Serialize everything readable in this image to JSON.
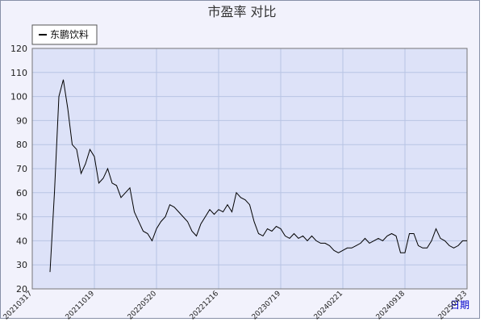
{
  "chart_data": {
    "type": "line",
    "title": "市盈率  对比",
    "x_label": "日期",
    "categories": [
      "20210317",
      null,
      null,
      null,
      null,
      null,
      null,
      null,
      null,
      null,
      null,
      null,
      null,
      null,
      "20211019",
      null,
      null,
      null,
      null,
      null,
      null,
      null,
      null,
      null,
      null,
      null,
      null,
      null,
      "20220520",
      null,
      null,
      null,
      null,
      null,
      null,
      null,
      null,
      null,
      null,
      null,
      null,
      null,
      "20221216",
      null,
      null,
      null,
      null,
      null,
      null,
      null,
      null,
      null,
      null,
      null,
      null,
      null,
      "20230719",
      null,
      null,
      null,
      null,
      null,
      null,
      null,
      null,
      null,
      null,
      null,
      null,
      null,
      "20240221",
      null,
      null,
      null,
      null,
      null,
      null,
      null,
      null,
      null,
      null,
      null,
      null,
      null,
      "20240918",
      null,
      null,
      null,
      null,
      null,
      null,
      null,
      null,
      null,
      null,
      null,
      null,
      null,
      "20250423"
    ],
    "series": [
      {
        "name": "东鹏饮料",
        "color": "#000000",
        "values": [
          null,
          null,
          null,
          null,
          27,
          60,
          100,
          107,
          95,
          80,
          78,
          68,
          72,
          78,
          75,
          64,
          66,
          70,
          64,
          63,
          58,
          60,
          62,
          52,
          48,
          44,
          43,
          40,
          45,
          48,
          50,
          55,
          54,
          52,
          50,
          48,
          44,
          42,
          47,
          50,
          53,
          51,
          53,
          52,
          55,
          52,
          60,
          58,
          57,
          55,
          48,
          43,
          42,
          45,
          44,
          46,
          45,
          42,
          41,
          43,
          41,
          42,
          40,
          42,
          40,
          39,
          39,
          38,
          36,
          35,
          36,
          37,
          37,
          38,
          39,
          41,
          39,
          40,
          41,
          40,
          42,
          43,
          42,
          35,
          35,
          43,
          43,
          38,
          37,
          37,
          40,
          45,
          41,
          40,
          38,
          37,
          38,
          40,
          40
        ]
      }
    ],
    "ylim": [
      20,
      120
    ],
    "yticks": [
      20,
      30,
      40,
      50,
      60,
      70,
      80,
      90,
      100,
      110,
      120
    ],
    "grid": true,
    "legend": "top-left"
  }
}
